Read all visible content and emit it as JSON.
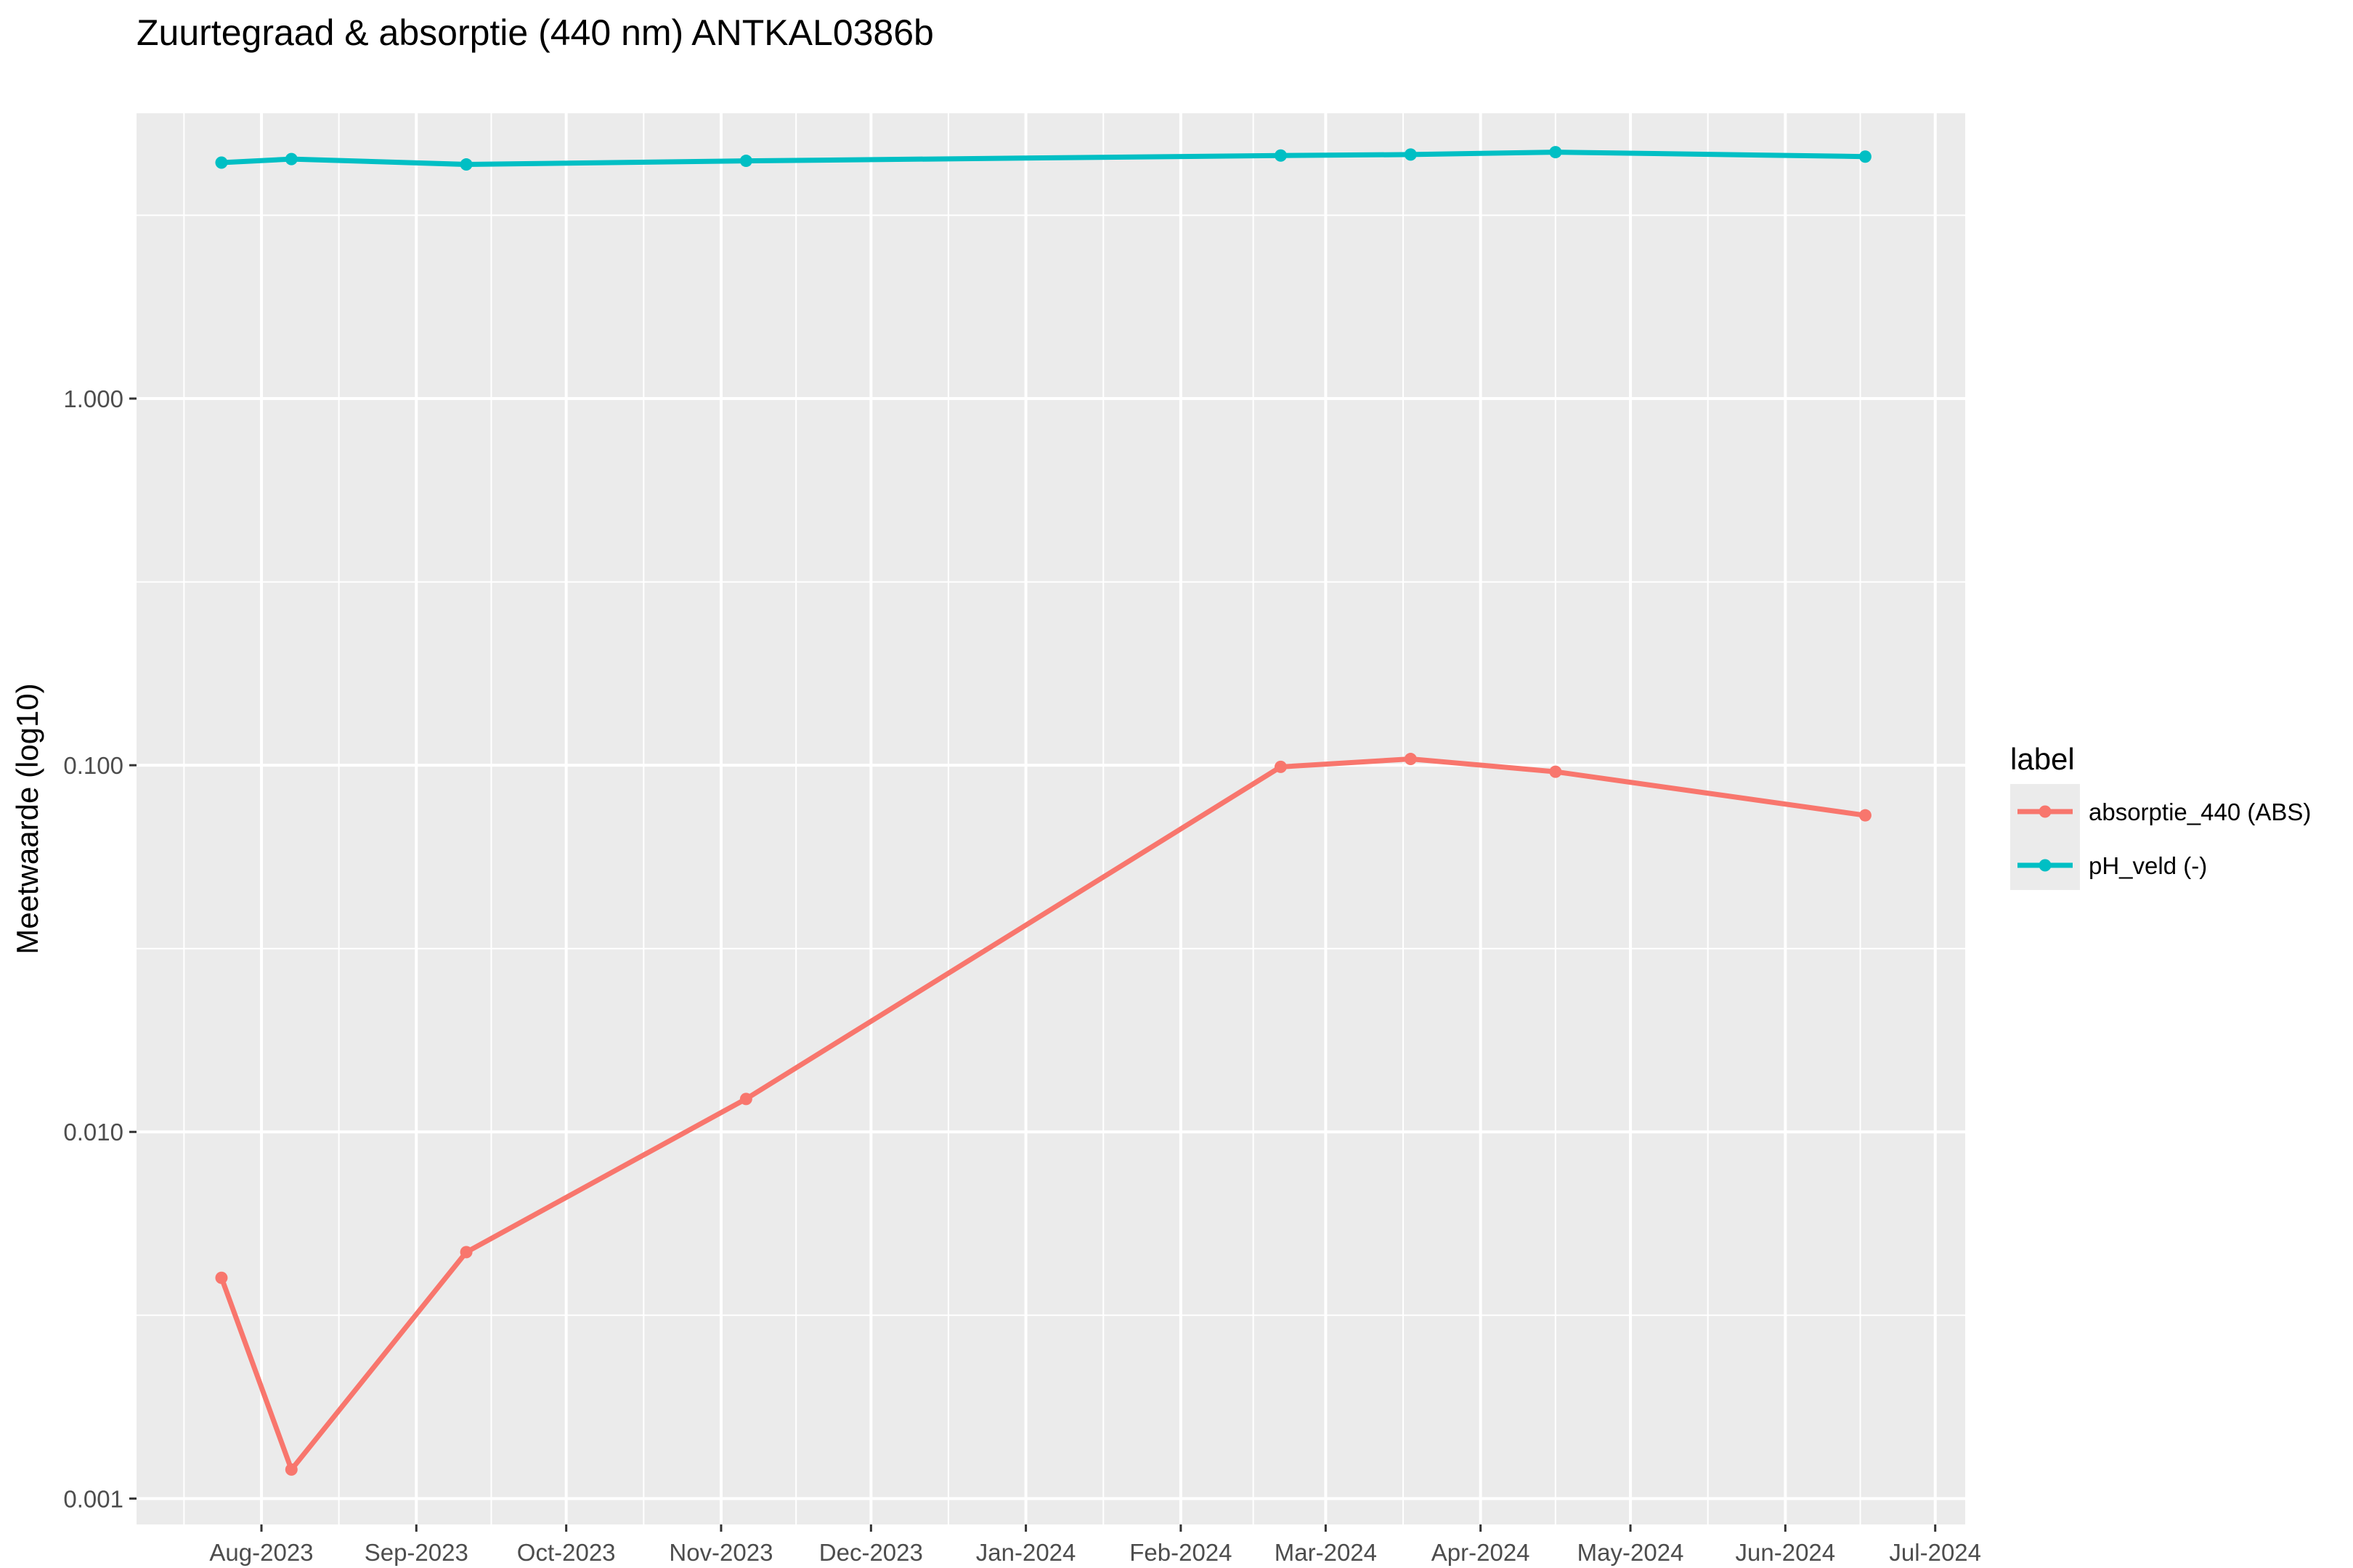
{
  "chart_data": {
    "type": "line",
    "title": "Zuurtegraad & absorptie (440 nm) ANTKAL0386b",
    "xlabel": "",
    "ylabel": "Meetwaarde (log10)",
    "y_scale": "log10",
    "ylim": [
      0.00085,
      6
    ],
    "xlim": [
      "2023-07-07",
      "2024-07-07"
    ],
    "y_ticks": [
      {
        "value": 0.001,
        "label": "0.001"
      },
      {
        "value": 0.01,
        "label": "0.010"
      },
      {
        "value": 0.1,
        "label": "0.100"
      },
      {
        "value": 1,
        "label": "1.000"
      }
    ],
    "x_ticks": [
      {
        "date": "2023-08-01",
        "label": "Aug-2023"
      },
      {
        "date": "2023-09-01",
        "label": "Sep-2023"
      },
      {
        "date": "2023-10-01",
        "label": "Oct-2023"
      },
      {
        "date": "2023-11-01",
        "label": "Nov-2023"
      },
      {
        "date": "2023-12-01",
        "label": "Dec-2023"
      },
      {
        "date": "2024-01-01",
        "label": "Jan-2024"
      },
      {
        "date": "2024-02-01",
        "label": "Feb-2024"
      },
      {
        "date": "2024-03-01",
        "label": "Mar-2024"
      },
      {
        "date": "2024-04-01",
        "label": "Apr-2024"
      },
      {
        "date": "2024-05-01",
        "label": "May-2024"
      },
      {
        "date": "2024-06-01",
        "label": "Jun-2024"
      },
      {
        "date": "2024-07-01",
        "label": "Jul-2024"
      }
    ],
    "grid": true,
    "legend": {
      "title": "label",
      "position": "right"
    },
    "series": [
      {
        "name": "absorptie_440 (ABS)",
        "color": "#F8766D",
        "points": [
          {
            "x": "2023-07-24",
            "y": 0.004
          },
          {
            "x": "2023-08-07",
            "y": 0.0012
          },
          {
            "x": "2023-09-11",
            "y": 0.0047
          },
          {
            "x": "2023-11-06",
            "y": 0.0123
          },
          {
            "x": "2024-02-21",
            "y": 0.099
          },
          {
            "x": "2024-03-18",
            "y": 0.104
          },
          {
            "x": "2024-04-16",
            "y": 0.096
          },
          {
            "x": "2024-06-17",
            "y": 0.073
          }
        ]
      },
      {
        "name": "pH_veld (-)",
        "color": "#00BFC4",
        "points": [
          {
            "x": "2023-07-24",
            "y": 4.4
          },
          {
            "x": "2023-08-07",
            "y": 4.5
          },
          {
            "x": "2023-09-11",
            "y": 4.35
          },
          {
            "x": "2023-11-06",
            "y": 4.45
          },
          {
            "x": "2024-02-21",
            "y": 4.6
          },
          {
            "x": "2024-03-18",
            "y": 4.63
          },
          {
            "x": "2024-04-16",
            "y": 4.7
          },
          {
            "x": "2024-06-17",
            "y": 4.57
          }
        ]
      }
    ]
  }
}
